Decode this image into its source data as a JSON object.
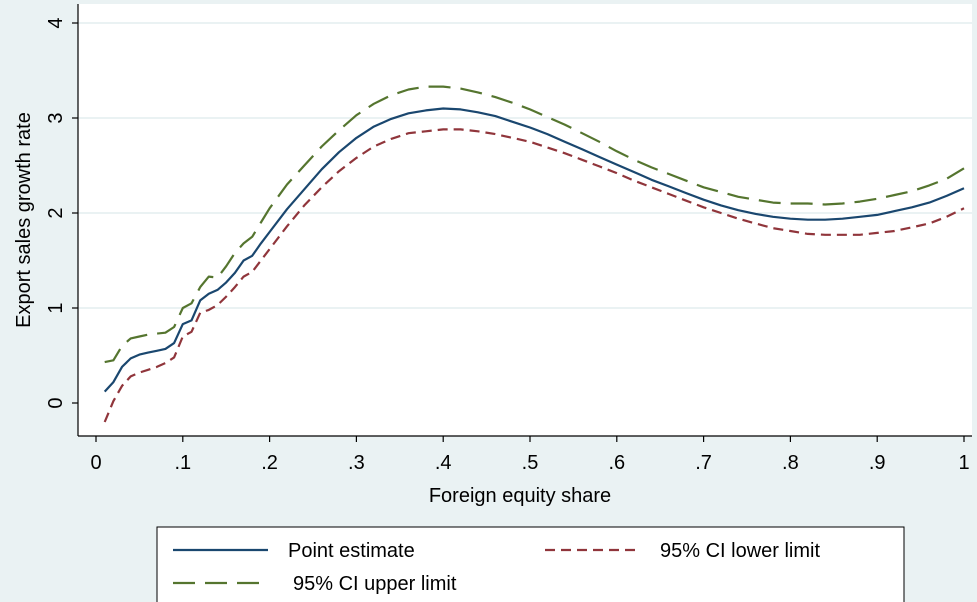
{
  "chart_data": {
    "type": "line",
    "title": "",
    "xlabel": "Foreign equity share",
    "ylabel": "Export sales growth rate",
    "xlim": [
      -0.01,
      1.01
    ],
    "ylim": [
      -0.35,
      4.1
    ],
    "xticks": [
      0,
      0.1,
      0.2,
      0.3,
      0.4,
      0.5,
      0.6,
      0.7,
      0.8,
      0.9,
      1
    ],
    "xtick_labels": [
      "0",
      ".1",
      ".2",
      ".3",
      ".4",
      ".5",
      ".6",
      ".7",
      ".8",
      ".9",
      "1"
    ],
    "yticks": [
      0,
      1,
      2,
      3,
      4
    ],
    "ytick_labels": [
      "0",
      "1",
      "2",
      "3",
      "4"
    ],
    "grid": "horizontal",
    "legend_position": "bottom",
    "x": [
      0.01,
      0.02,
      0.03,
      0.04,
      0.05,
      0.06,
      0.07,
      0.08,
      0.09,
      0.1,
      0.11,
      0.12,
      0.13,
      0.14,
      0.15,
      0.16,
      0.17,
      0.18,
      0.19,
      0.2,
      0.22,
      0.24,
      0.26,
      0.28,
      0.3,
      0.32,
      0.34,
      0.36,
      0.38,
      0.4,
      0.42,
      0.44,
      0.46,
      0.48,
      0.5,
      0.52,
      0.54,
      0.56,
      0.58,
      0.6,
      0.62,
      0.64,
      0.66,
      0.68,
      0.7,
      0.72,
      0.74,
      0.76,
      0.78,
      0.8,
      0.82,
      0.84,
      0.86,
      0.88,
      0.9,
      0.92,
      0.94,
      0.96,
      0.98,
      1.0
    ],
    "series": [
      {
        "name": "Point estimate",
        "color": "#1a476f",
        "dash": "solid",
        "values": [
          0.12,
          0.22,
          0.38,
          0.47,
          0.51,
          0.53,
          0.55,
          0.57,
          0.63,
          0.83,
          0.87,
          1.08,
          1.15,
          1.19,
          1.27,
          1.37,
          1.5,
          1.55,
          1.68,
          1.8,
          2.04,
          2.25,
          2.46,
          2.64,
          2.79,
          2.91,
          2.99,
          3.05,
          3.08,
          3.1,
          3.09,
          3.06,
          3.02,
          2.96,
          2.9,
          2.83,
          2.75,
          2.67,
          2.59,
          2.51,
          2.43,
          2.35,
          2.28,
          2.21,
          2.14,
          2.08,
          2.03,
          1.99,
          1.96,
          1.94,
          1.93,
          1.93,
          1.94,
          1.96,
          1.98,
          2.02,
          2.06,
          2.11,
          2.18,
          2.26
        ]
      },
      {
        "name": "95% CI lower limit",
        "color": "#90353b",
        "dash": "short",
        "values": [
          -0.2,
          0.02,
          0.18,
          0.28,
          0.32,
          0.35,
          0.38,
          0.42,
          0.48,
          0.7,
          0.75,
          0.95,
          0.98,
          1.03,
          1.12,
          1.22,
          1.33,
          1.38,
          1.5,
          1.62,
          1.86,
          2.08,
          2.27,
          2.44,
          2.58,
          2.7,
          2.78,
          2.84,
          2.86,
          2.88,
          2.88,
          2.86,
          2.83,
          2.79,
          2.75,
          2.69,
          2.63,
          2.56,
          2.49,
          2.42,
          2.34,
          2.27,
          2.2,
          2.13,
          2.06,
          2.0,
          1.94,
          1.89,
          1.84,
          1.81,
          1.78,
          1.77,
          1.77,
          1.77,
          1.79,
          1.81,
          1.85,
          1.89,
          1.96,
          2.05
        ]
      },
      {
        "name": "95% CI upper limit",
        "color": "#55752f",
        "dash": "long",
        "values": [
          0.43,
          0.45,
          0.6,
          0.68,
          0.7,
          0.72,
          0.73,
          0.74,
          0.8,
          1.0,
          1.05,
          1.22,
          1.33,
          1.32,
          1.44,
          1.58,
          1.68,
          1.75,
          1.9,
          2.05,
          2.3,
          2.5,
          2.7,
          2.87,
          3.03,
          3.15,
          3.24,
          3.3,
          3.33,
          3.33,
          3.31,
          3.27,
          3.22,
          3.16,
          3.09,
          3.01,
          2.93,
          2.84,
          2.75,
          2.65,
          2.56,
          2.48,
          2.41,
          2.34,
          2.27,
          2.22,
          2.17,
          2.14,
          2.11,
          2.1,
          2.1,
          2.09,
          2.1,
          2.12,
          2.15,
          2.19,
          2.23,
          2.29,
          2.36,
          2.47
        ]
      }
    ]
  }
}
